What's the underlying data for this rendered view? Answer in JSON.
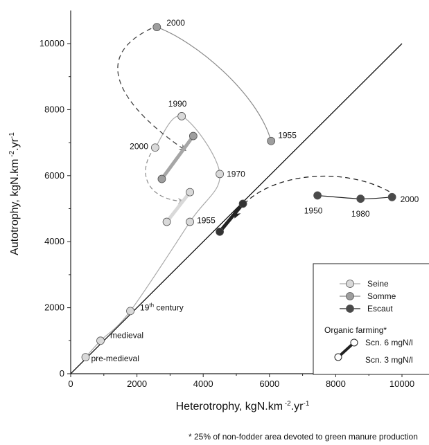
{
  "chart_data": {
    "type": "scatter",
    "title": "",
    "xlabel": "Heterotrophy, kgN.km⁻².yr⁻¹",
    "ylabel": "Autotrophy, kgN.km⁻².yr⁻¹",
    "xlim": [
      0,
      10500
    ],
    "ylim": [
      0,
      11000
    ],
    "x_ticks": [
      0,
      2000,
      4000,
      6000,
      8000,
      10000
    ],
    "y_ticks": [
      0,
      2000,
      4000,
      6000,
      8000,
      10000
    ],
    "grid": false,
    "reference_line": {
      "type": "1:1",
      "from": [
        0,
        0
      ],
      "to": [
        10000,
        10000
      ]
    },
    "series": [
      {
        "name": "Seine",
        "color": "#d9d9d9",
        "line_color": "#a9a9a9",
        "points": [
          {
            "x": 450,
            "y": 500,
            "label": "pre-medieval"
          },
          {
            "x": 900,
            "y": 1000,
            "label": "medieval"
          },
          {
            "x": 1800,
            "y": 1900,
            "label": "19th century"
          },
          {
            "x": 3600,
            "y": 4600,
            "label": "1955"
          },
          {
            "x": 4500,
            "y": 6050,
            "label": "1970"
          },
          {
            "x": 3350,
            "y": 7800,
            "label": "1990"
          },
          {
            "x": 2550,
            "y": 6850,
            "label": "2000"
          }
        ]
      },
      {
        "name": "Somme",
        "color": "#9e9e9e",
        "line_color": "#8a8a8a",
        "points": [
          {
            "x": 6050,
            "y": 7050,
            "label": "1955"
          },
          {
            "x": 2600,
            "y": 10500,
            "label": "2000"
          }
        ]
      },
      {
        "name": "Escaut",
        "color": "#4a4a4a",
        "line_color": "#222222",
        "points": [
          {
            "x": 7450,
            "y": 5400,
            "label": "1950"
          },
          {
            "x": 8750,
            "y": 5300,
            "label": "1980"
          },
          {
            "x": 9700,
            "y": 5350,
            "label": "2000"
          }
        ]
      }
    ],
    "organic_scenarios": [
      {
        "river": "Seine",
        "color": "#d9d9d9",
        "scn6": {
          "x": 3600,
          "y": 5500
        },
        "scn3": {
          "x": 2900,
          "y": 4600
        }
      },
      {
        "river": "Somme",
        "color": "#a6a6a6",
        "scn6": {
          "x": 3700,
          "y": 7200
        },
        "scn3": {
          "x": 2750,
          "y": 5900
        }
      },
      {
        "river": "Escaut",
        "color": "#222222",
        "scn6": {
          "x": 5200,
          "y": 5150
        },
        "scn3": {
          "x": 4500,
          "y": 4300
        }
      }
    ],
    "legend": {
      "position": "bottom-right",
      "entries": [
        "Seine",
        "Somme",
        "Escaut"
      ],
      "organic_title": "Organic farming*",
      "scn6_label": "Scn. 6 mgN/l",
      "scn3_label": "Scn. 3 mgN/l"
    },
    "footnote": "* 25% of non-fodder area devoted to green manure production"
  }
}
